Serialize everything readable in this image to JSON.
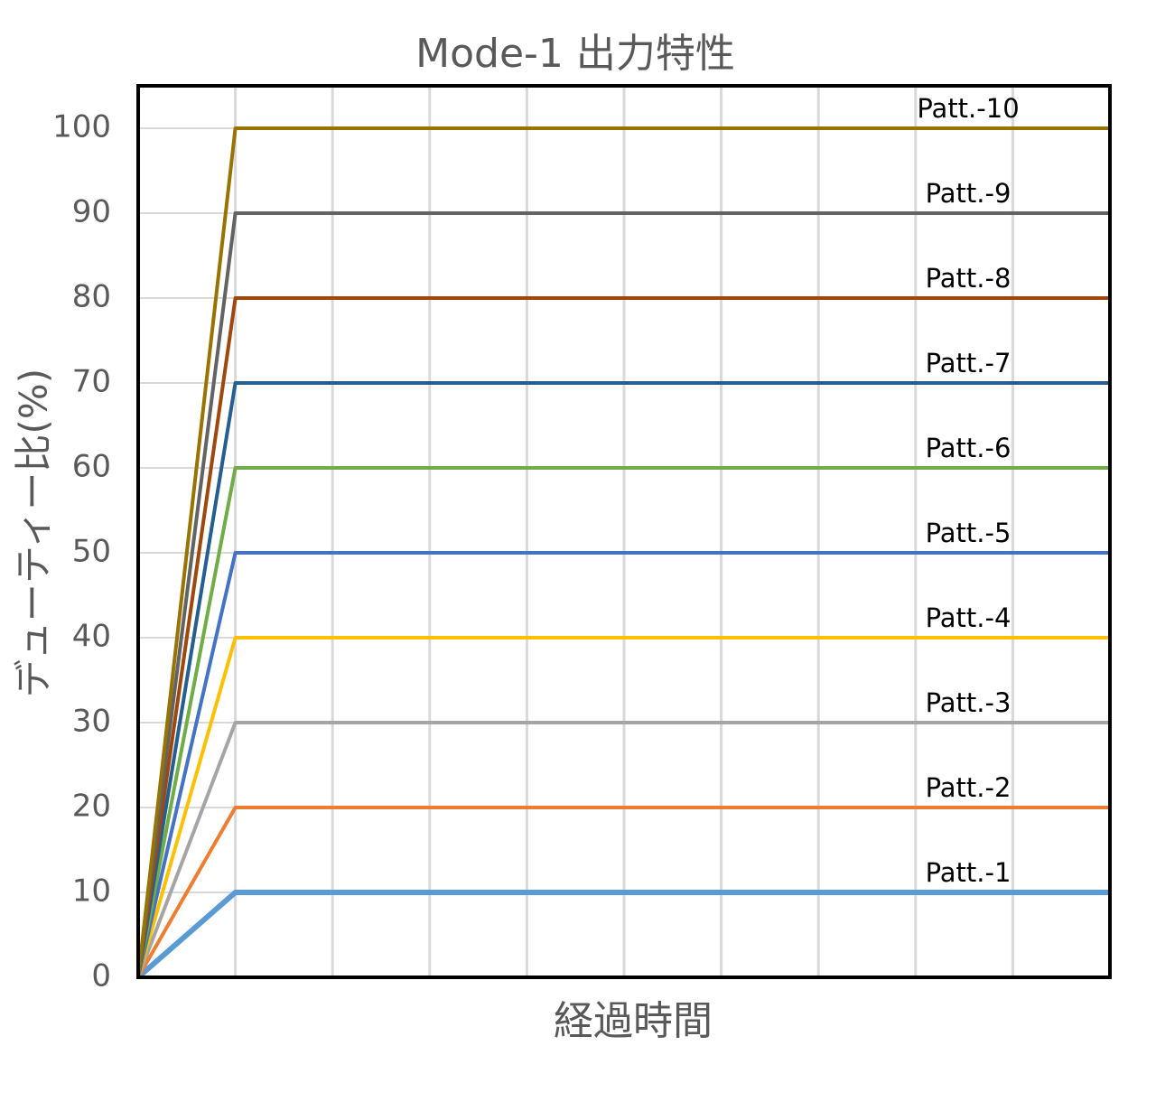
{
  "chart_data": {
    "type": "line",
    "title": "Mode-1 出力特性",
    "x_label": "経過時間",
    "y_label": "デューティー比(%)",
    "categories": [
      null,
      null,
      null,
      null,
      null,
      null,
      null,
      null,
      null,
      null,
      null
    ],
    "ylim": [
      0,
      105
    ],
    "yticks": [
      0,
      10,
      20,
      30,
      40,
      50,
      60,
      70,
      80,
      90,
      100
    ],
    "grid": true,
    "series": [
      {
        "name": "Patt.-1",
        "color": "#5b9bd5",
        "values": [
          0,
          10,
          10,
          10,
          10,
          10,
          10,
          10,
          10,
          10,
          10
        ]
      },
      {
        "name": "Patt.-2",
        "color": "#ed7d31",
        "values": [
          0,
          20,
          20,
          20,
          20,
          20,
          20,
          20,
          20,
          20,
          20
        ]
      },
      {
        "name": "Patt.-3",
        "color": "#a5a5a5",
        "values": [
          0,
          30,
          30,
          30,
          30,
          30,
          30,
          30,
          30,
          30,
          30
        ]
      },
      {
        "name": "Patt.-4",
        "color": "#ffc000",
        "values": [
          0,
          40,
          40,
          40,
          40,
          40,
          40,
          40,
          40,
          40,
          40
        ]
      },
      {
        "name": "Patt.-5",
        "color": "#4472c4",
        "values": [
          0,
          50,
          50,
          50,
          50,
          50,
          50,
          50,
          50,
          50,
          50
        ]
      },
      {
        "name": "Patt.-6",
        "color": "#70ad47",
        "values": [
          0,
          60,
          60,
          60,
          60,
          60,
          60,
          60,
          60,
          60,
          60
        ]
      },
      {
        "name": "Patt.-7",
        "color": "#255e91",
        "values": [
          0,
          70,
          70,
          70,
          70,
          70,
          70,
          70,
          70,
          70,
          70
        ]
      },
      {
        "name": "Patt.-8",
        "color": "#9e480e",
        "values": [
          0,
          80,
          80,
          80,
          80,
          80,
          80,
          80,
          80,
          80,
          80
        ]
      },
      {
        "name": "Patt.-9",
        "color": "#636363",
        "values": [
          0,
          90,
          90,
          90,
          90,
          90,
          90,
          90,
          90,
          90,
          90
        ]
      },
      {
        "name": "Patt.-10",
        "color": "#997300",
        "values": [
          0,
          100,
          100,
          100,
          100,
          100,
          100,
          100,
          100,
          100,
          100
        ]
      }
    ]
  }
}
